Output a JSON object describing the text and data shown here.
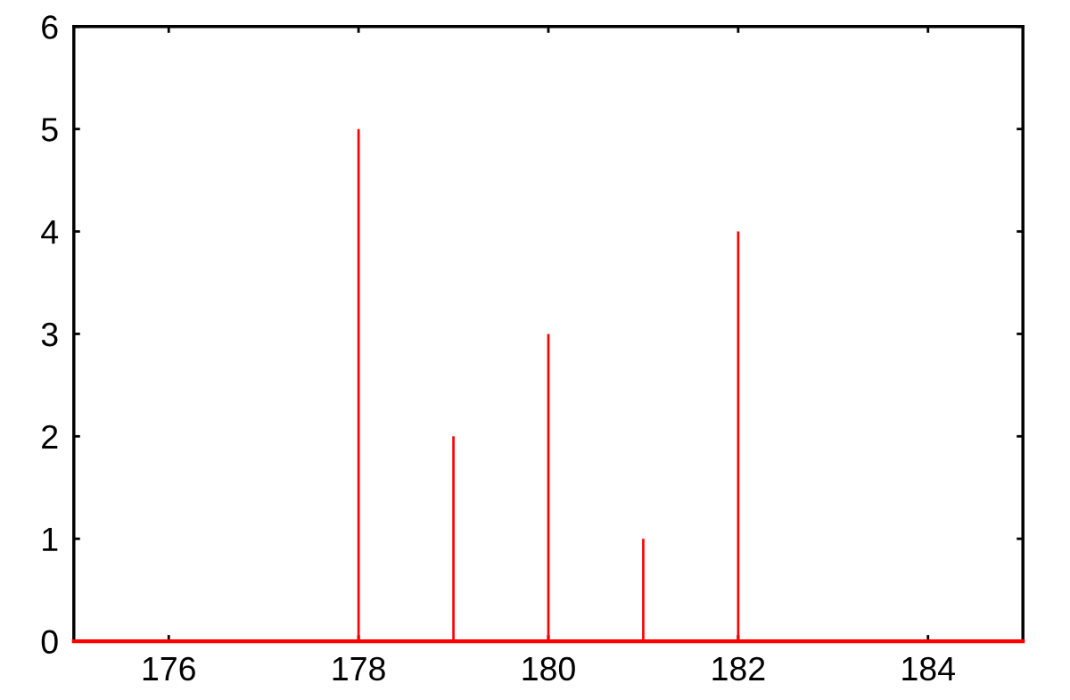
{
  "chart_data": {
    "type": "bar",
    "x": [
      178,
      179,
      180,
      181,
      182
    ],
    "values": [
      5,
      2,
      3,
      1,
      4
    ],
    "color": "#ff0000",
    "xlim": [
      175,
      185
    ],
    "xticks": [
      176,
      178,
      180,
      182,
      184
    ],
    "ylim": [
      0,
      6
    ],
    "yticks": [
      0,
      1,
      2,
      3,
      4,
      5,
      6
    ]
  }
}
